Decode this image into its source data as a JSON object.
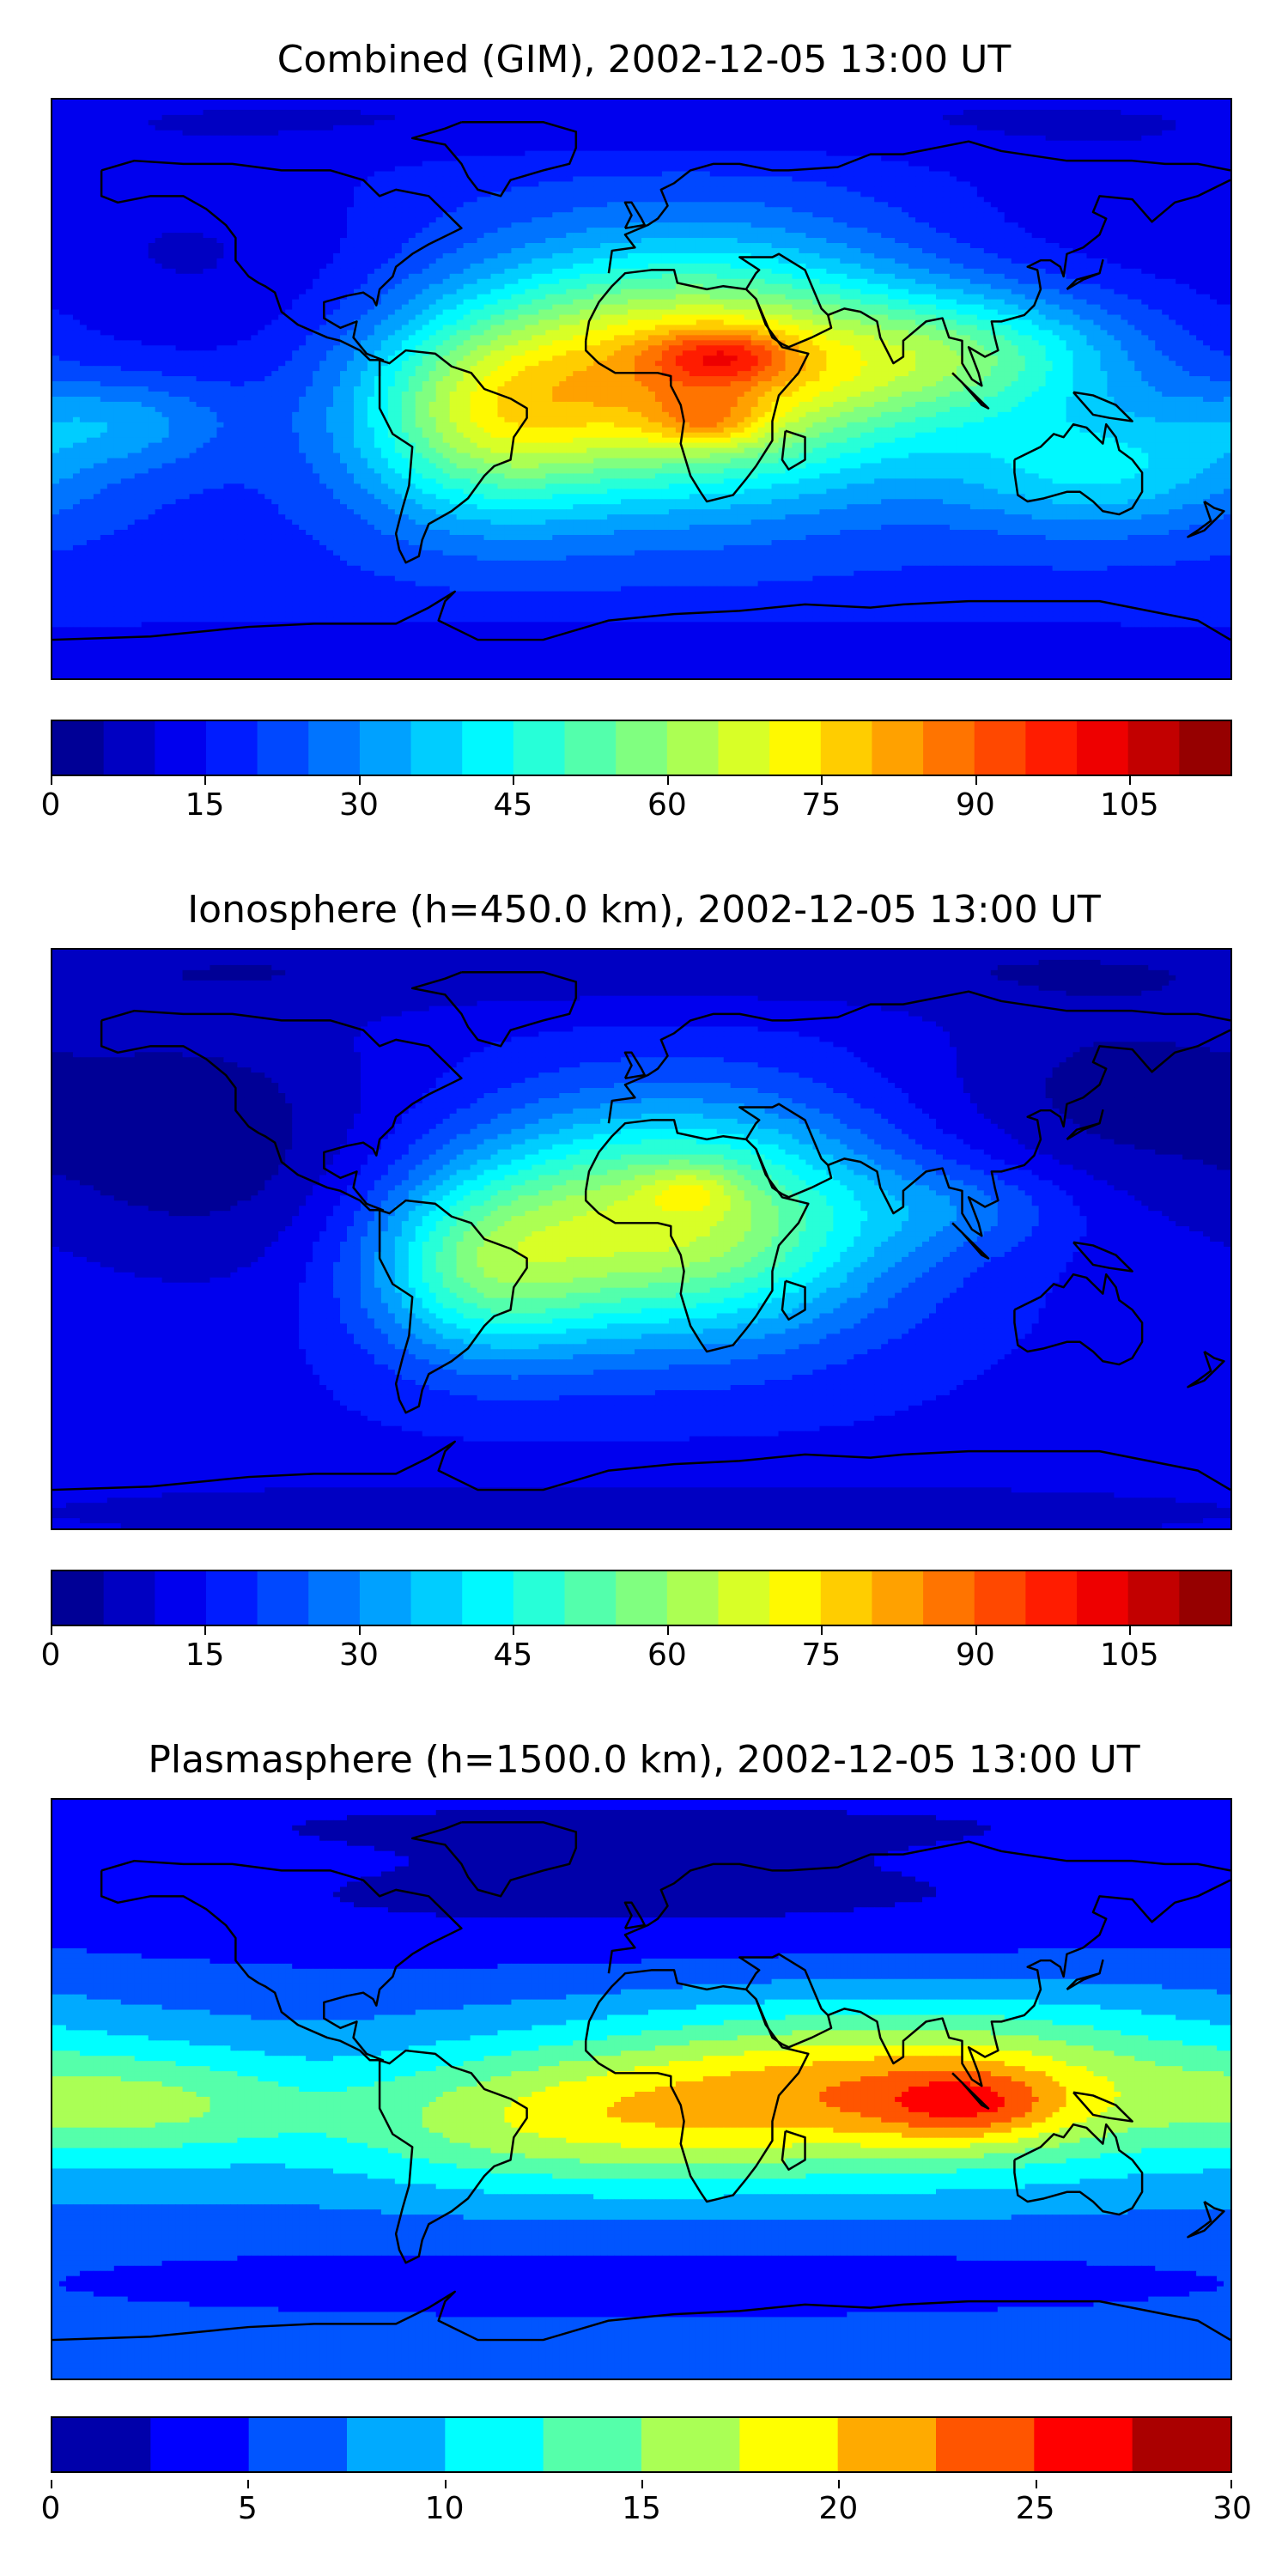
{
  "chart_data": [
    {
      "type": "heatmap",
      "title": "Combined (GIM), 2002-12-05 13:00 UT",
      "colormap": "jet",
      "colorbar": {
        "range": [
          0,
          115
        ],
        "levels": [
          0,
          5,
          10,
          15,
          20,
          25,
          30,
          35,
          40,
          45,
          50,
          55,
          60,
          65,
          70,
          75,
          80,
          85,
          90,
          95,
          100,
          105,
          110,
          115
        ],
        "tick_values": [
          0,
          15,
          30,
          45,
          60,
          75,
          90,
          105
        ],
        "tick_labels": [
          "0",
          "15",
          "30",
          "45",
          "60",
          "75",
          "90",
          "105"
        ]
      },
      "field": {
        "background": 18,
        "blobs": [
          {
            "lon": 15,
            "lat": 5,
            "value": 62,
            "sx": 48,
            "sy": 26
          },
          {
            "lon": 25,
            "lat": 10,
            "value": 20,
            "sx": 15,
            "sy": 6
          },
          {
            "lon": 20,
            "lat": -10,
            "value": 15,
            "sx": 12,
            "sy": 6
          },
          {
            "lon": -50,
            "lat": -10,
            "value": 32,
            "sx": 28,
            "sy": 22
          },
          {
            "lon": 100,
            "lat": 10,
            "value": 28,
            "sx": 35,
            "sy": 14
          },
          {
            "lon": 140,
            "lat": -25,
            "value": 22,
            "sx": 35,
            "sy": 14
          },
          {
            "lon": -160,
            "lat": -10,
            "value": 14,
            "sx": 25,
            "sy": 10
          },
          {
            "lon": -130,
            "lat": 40,
            "value": -8,
            "sx": 40,
            "sy": 25
          },
          {
            "lon": 140,
            "lat": 55,
            "value": -6,
            "sx": 40,
            "sy": 20
          },
          {
            "lon": 0,
            "lat": 85,
            "value": -8,
            "sx": 200,
            "sy": 10
          },
          {
            "lon": 0,
            "lat": -85,
            "value": -8,
            "sx": 200,
            "sy": 10
          }
        ]
      }
    },
    {
      "type": "heatmap",
      "title": "Ionosphere  (h=450.0 km), 2002-12-05 13:00 UT",
      "colormap": "jet",
      "colorbar": {
        "range": [
          0,
          115
        ],
        "levels": [
          0,
          5,
          10,
          15,
          20,
          25,
          30,
          35,
          40,
          45,
          50,
          55,
          60,
          65,
          70,
          75,
          80,
          85,
          90,
          95,
          100,
          105,
          110,
          115
        ],
        "tick_values": [
          0,
          15,
          30,
          45,
          60,
          75,
          90,
          105
        ],
        "tick_labels": [
          "0",
          "15",
          "30",
          "45",
          "60",
          "75",
          "90",
          "105"
        ]
      },
      "field": {
        "background": 14,
        "blobs": [
          {
            "lon": 10,
            "lat": 5,
            "value": 52,
            "sx": 45,
            "sy": 25
          },
          {
            "lon": 15,
            "lat": 15,
            "value": 10,
            "sx": 10,
            "sy": 5
          },
          {
            "lon": -50,
            "lat": -10,
            "value": 28,
            "sx": 25,
            "sy": 20
          },
          {
            "lon": 100,
            "lat": 10,
            "value": 10,
            "sx": 25,
            "sy": 10
          },
          {
            "lon": -130,
            "lat": 30,
            "value": -12,
            "sx": 40,
            "sy": 30
          },
          {
            "lon": 140,
            "lat": 45,
            "value": -10,
            "sx": 40,
            "sy": 25
          },
          {
            "lon": 0,
            "lat": 85,
            "value": -8,
            "sx": 200,
            "sy": 10
          },
          {
            "lon": 0,
            "lat": -85,
            "value": -6,
            "sx": 200,
            "sy": 10
          }
        ]
      }
    },
    {
      "type": "heatmap",
      "title": "Plasmasphere (h=1500.0 km), 2002-12-05 13:00 UT",
      "colormap": "jet",
      "colorbar": {
        "range": [
          0,
          30
        ],
        "levels": [
          0,
          2.5,
          5,
          7.5,
          10,
          12.5,
          15,
          17.5,
          20,
          22.5,
          25,
          27.5,
          30
        ],
        "tick_values": [
          0,
          5,
          10,
          15,
          20,
          25,
          30
        ],
        "tick_labels": [
          "0",
          "5",
          "10",
          "15",
          "20",
          "25",
          "30"
        ]
      },
      "field": {
        "background": 7,
        "blobs": [
          {
            "lon": 80,
            "lat": 0,
            "value": 14,
            "sx": 70,
            "sy": 18
          },
          {
            "lon": 100,
            "lat": -5,
            "value": 6,
            "sx": 20,
            "sy": 8
          },
          {
            "lon": -30,
            "lat": -10,
            "value": 8,
            "sx": 55,
            "sy": 15
          },
          {
            "lon": -150,
            "lat": -5,
            "value": 6,
            "sx": 35,
            "sy": 12
          },
          {
            "lon": 0,
            "lat": 60,
            "value": -5,
            "sx": 200,
            "sy": 18
          },
          {
            "lon": 0,
            "lat": -60,
            "value": -3,
            "sx": 200,
            "sy": 12
          },
          {
            "lon": 0,
            "lat": 85,
            "value": -3,
            "sx": 200,
            "sy": 8
          }
        ]
      }
    }
  ]
}
